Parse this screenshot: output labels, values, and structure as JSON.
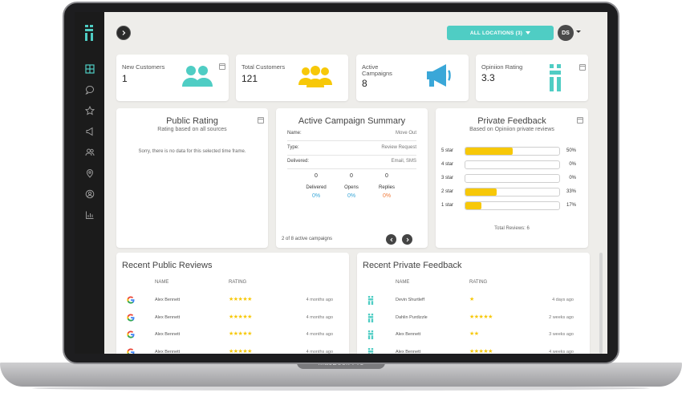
{
  "header": {
    "location_button": "ALL LOCATIONS (3)",
    "avatar_initials": "DS"
  },
  "sidebar": {
    "items": [
      {
        "icon": "dashboard-icon"
      },
      {
        "icon": "chat-icon"
      },
      {
        "icon": "star-icon"
      },
      {
        "icon": "megaphone-icon"
      },
      {
        "icon": "users-icon"
      },
      {
        "icon": "location-pin-icon"
      },
      {
        "icon": "user-circle-icon"
      },
      {
        "icon": "bar-chart-icon"
      }
    ]
  },
  "stats": [
    {
      "label": "New Customers",
      "value": "1",
      "icon": "user-pair-icon"
    },
    {
      "label": "Total Customers",
      "value": "121",
      "icon": "group-icon"
    },
    {
      "label": "Active Campaigns",
      "value": "8",
      "icon": "megaphone-icon"
    },
    {
      "label": "Opiniion Rating",
      "value": "3.3",
      "icon": "opiniion-logo-icon"
    }
  ],
  "public_rating": {
    "title": "Public Rating",
    "subtitle": "Rating based on all sources",
    "empty_message": "Sorry, there is no data for this selected time frame."
  },
  "campaign": {
    "title": "Active Campaign Summary",
    "rows": [
      {
        "key": "Name:",
        "value": "Move Out"
      },
      {
        "key": "Type:",
        "value": "Review Request"
      },
      {
        "key": "Delivered:",
        "value": "Email, SMS"
      }
    ],
    "metrics": [
      {
        "count": "0",
        "label": "Delivered",
        "pct": "0%",
        "color": "#3aa7d8"
      },
      {
        "count": "0",
        "label": "Opens",
        "pct": "0%",
        "color": "#3aa7d8"
      },
      {
        "count": "0",
        "label": "Replies",
        "pct": "0%",
        "color": "#f07b3c"
      }
    ],
    "pager": "2 of 8 active campaigns"
  },
  "private_feedback": {
    "title": "Private Feedback",
    "subtitle": "Based on Opiniion private reviews",
    "bars": [
      {
        "label": "5 star",
        "pct": "50%",
        "fill": 0.5
      },
      {
        "label": "4 star",
        "pct": "0%",
        "fill": 0
      },
      {
        "label": "3 star",
        "pct": "0%",
        "fill": 0
      },
      {
        "label": "2 star",
        "pct": "33%",
        "fill": 0.33
      },
      {
        "label": "1 star",
        "pct": "17%",
        "fill": 0.17
      }
    ],
    "total": "Total Reviews: 6"
  },
  "recent_public": {
    "title": "Recent Public Reviews",
    "col_name": "NAME",
    "col_rating": "RATING",
    "rows": [
      {
        "source_icon": "google-icon",
        "name": "Alex Bennett",
        "stars": "★★★★★",
        "rating": 5,
        "time": "4 months ago"
      },
      {
        "source_icon": "google-icon",
        "name": "Alex Bennett",
        "stars": "★★★★★",
        "rating": 5,
        "time": "4 months ago"
      },
      {
        "source_icon": "google-icon",
        "name": "Alex Bennett",
        "stars": "★★★★★",
        "rating": 5,
        "time": "4 months ago"
      },
      {
        "source_icon": "google-icon",
        "name": "Alex Bennett",
        "stars": "★★★★★",
        "rating": 5,
        "time": "4 months ago"
      }
    ]
  },
  "recent_private": {
    "title": "Recent Private Feedback",
    "col_name": "NAME",
    "col_rating": "RATING",
    "rows": [
      {
        "source_icon": "opiniion-logo-icon",
        "name": "Devin Shurtleff",
        "stars": "★",
        "rating": 1,
        "time": "4 days ago"
      },
      {
        "source_icon": "opiniion-logo-icon",
        "name": "Dahlin Purdizzle",
        "stars": "★★★★★",
        "rating": 5,
        "time": "2 weeks ago"
      },
      {
        "source_icon": "opiniion-logo-icon",
        "name": "Alex Bennett",
        "stars": "★★",
        "rating": 2,
        "time": "3 weeks ago"
      },
      {
        "source_icon": "opiniion-logo-icon",
        "name": "Alex Bennett",
        "stars": "★★★★★",
        "rating": 5,
        "time": "4 weeks ago"
      }
    ]
  },
  "device": {
    "brand": "MacBook Pro"
  },
  "colors": {
    "accent": "#4fcdc4",
    "star": "#f7c808",
    "sidebar": "#1b1b1b"
  }
}
